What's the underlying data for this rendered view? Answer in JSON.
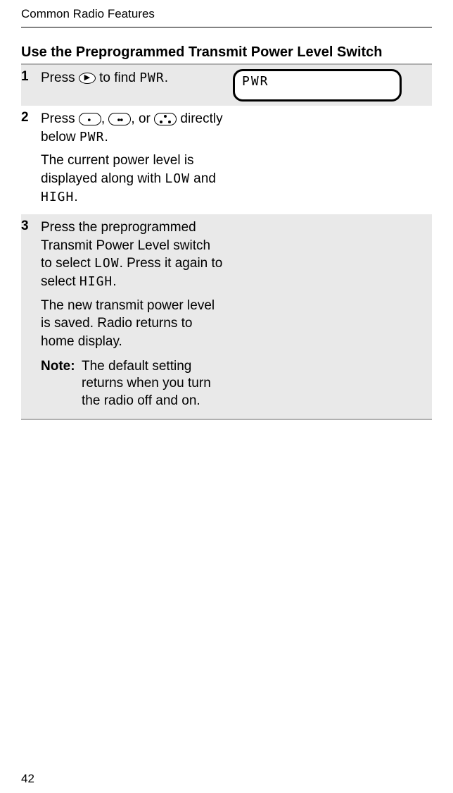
{
  "runningHeader": "Common Radio Features",
  "pageNumber": "42",
  "heading": "Use the Preprogrammed Transmit Power Level Switch",
  "display": {
    "line1": "PWR"
  },
  "labels": {
    "pwr": "PWR",
    "low": "LOW",
    "high": "HIGH"
  },
  "steps": {
    "s1": {
      "num": "1",
      "t_a": "Press ",
      "t_b": " to find ",
      "t_c": "."
    },
    "s2": {
      "num": "2",
      "t_a": "Press ",
      "t_b": ", ",
      "t_c": ", or ",
      "t_d": " directly below ",
      "t_e": ".",
      "p2_a": "The current power level is displayed along with ",
      "p2_b": " and ",
      "p2_c": "."
    },
    "s3": {
      "num": "3",
      "p1_a": "Press the preprogrammed Transmit Power Level switch to select ",
      "p1_b": ". Press it again to select ",
      "p1_c": ".",
      "p2": "The new transmit power level is saved. Radio returns to home display.",
      "noteLabel": "Note:",
      "noteText": "The default setting returns when you turn the radio off and on."
    }
  },
  "colors": {
    "rowOdd": "#e9e9e9",
    "border": "#b0b0b0",
    "text": "#000000",
    "background": "#ffffff"
  }
}
